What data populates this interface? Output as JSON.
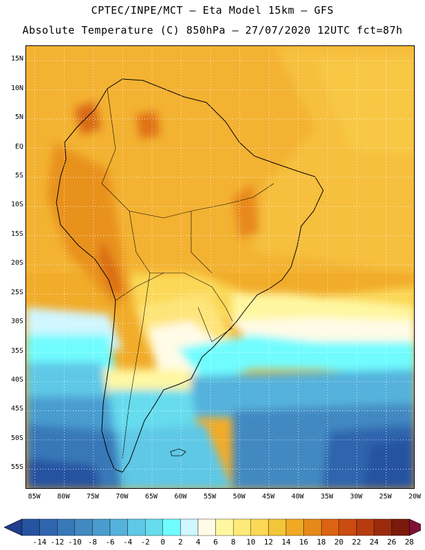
{
  "header": {
    "line1": "CPTEC/INPE/MCT –  Eta Model 15km – GFS",
    "line2": "Absolute Temperature (C) 850hPa – 27/07/2020 12UTC fct=87h"
  },
  "map": {
    "latitude_labels": [
      "15N",
      "10N",
      "5N",
      "EQ",
      "5S",
      "10S",
      "15S",
      "20S",
      "25S",
      "30S",
      "35S",
      "40S",
      "45S",
      "50S",
      "55S"
    ],
    "longitude_labels": [
      "85W",
      "80W",
      "75W",
      "70W",
      "65W",
      "60W",
      "55W",
      "50W",
      "45W",
      "40W",
      "35W",
      "30W",
      "25W",
      "20W"
    ],
    "latitude_values": [
      15,
      10,
      5,
      0,
      -5,
      -10,
      -15,
      -20,
      -25,
      -30,
      -35,
      -40,
      -45,
      -50,
      -55
    ],
    "longitude_values": [
      -85,
      -80,
      -75,
      -70,
      -65,
      -60,
      -55,
      -50,
      -45,
      -40,
      -35,
      -30,
      -25,
      -20
    ],
    "lat_range": [
      -58.5,
      17.5
    ],
    "lon_range": [
      -86.5,
      -20.0
    ]
  },
  "colorbar": {
    "labels": [
      "-14",
      "-12",
      "-10",
      "-8",
      "-6",
      "-4",
      "-2",
      "0",
      "2",
      "4",
      "6",
      "8",
      "10",
      "12",
      "14",
      "16",
      "18",
      "20",
      "22",
      "24",
      "26",
      "28"
    ],
    "colors": [
      "#1f3f8c",
      "#2653a0",
      "#2e65ad",
      "#3878b8",
      "#4289c2",
      "#4a9ccf",
      "#55b2dc",
      "#5fc8e6",
      "#66dcee",
      "#6ffcff",
      "#d0f6ff",
      "#fffbe6",
      "#fff7a0",
      "#feea78",
      "#fbd856",
      "#f3c53a",
      "#f1a923",
      "#e7891a",
      "#db6413",
      "#c94c10",
      "#b63c0f",
      "#9a2a0c",
      "#7a1a0a",
      "#801036"
    ]
  }
}
